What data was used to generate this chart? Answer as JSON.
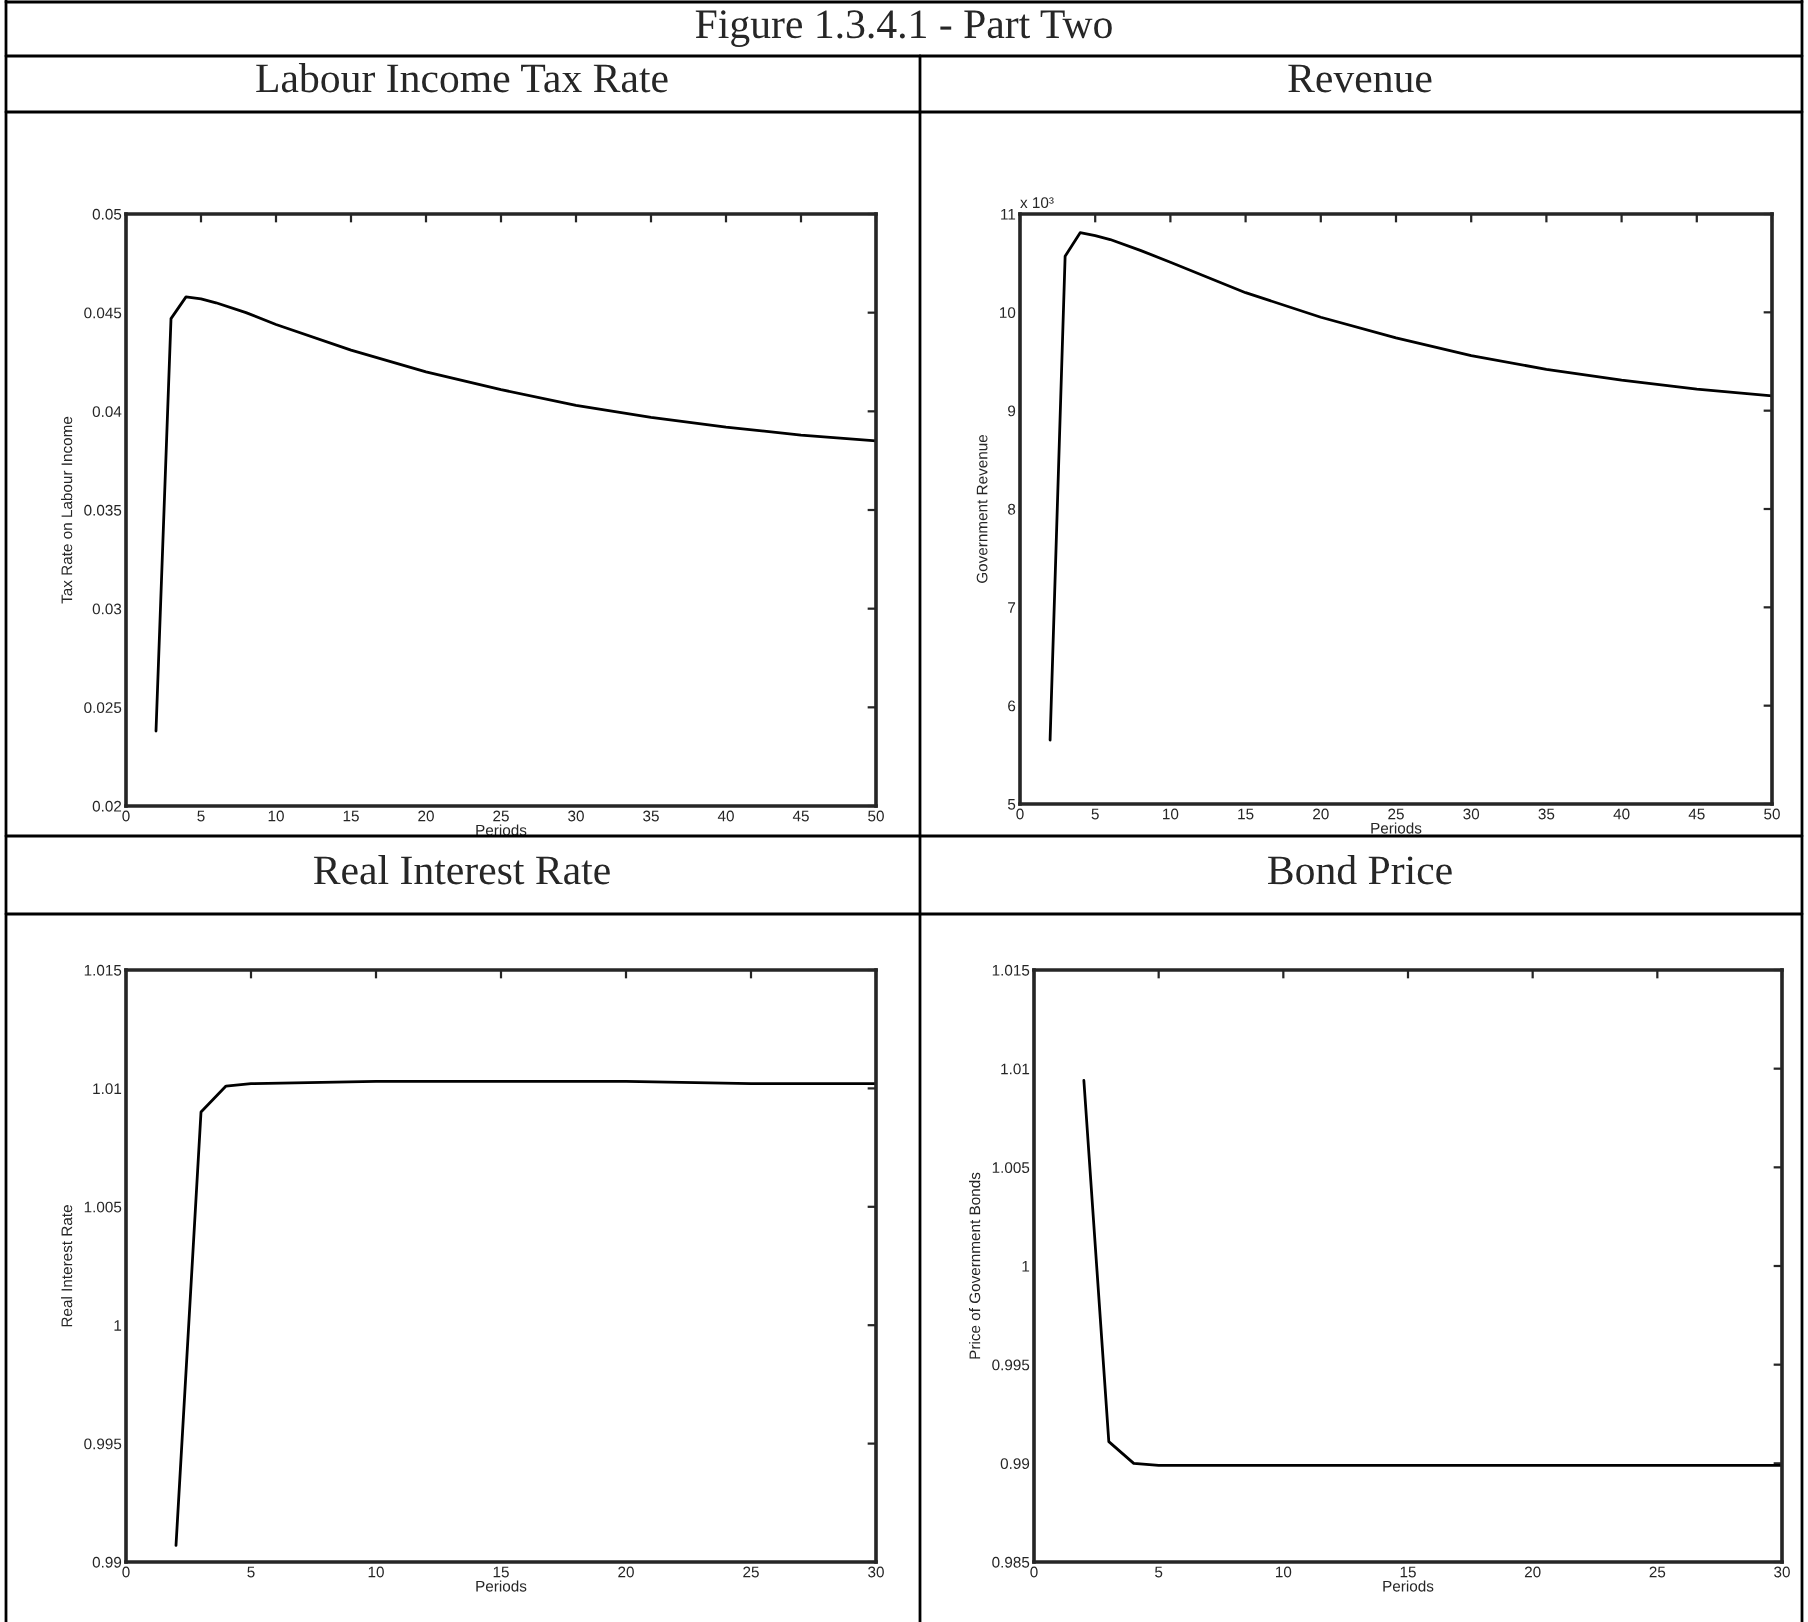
{
  "chart_data": [
    {
      "type": "line",
      "title": "Labour Income Tax Rate",
      "xlabel": "Periods",
      "ylabel": "Tax Rate on Labour Income",
      "annotations": [
        "Figure 1.3.4.1 - Part Two"
      ],
      "x": [
        2,
        3,
        4,
        5,
        6,
        8,
        10,
        15,
        20,
        25,
        30,
        35,
        40,
        45,
        50
      ],
      "series": [
        {
          "color": "#000000",
          "values": [
            0.0238,
            0.0447,
            0.0458,
            0.0457,
            0.0455,
            0.045,
            0.0444,
            0.0431,
            0.042,
            0.0411,
            0.0403,
            0.0397,
            0.0392,
            0.0388,
            0.0385
          ]
        }
      ],
      "xlim": [
        0,
        50
      ],
      "xticks": [
        0,
        5,
        10,
        15,
        20,
        25,
        30,
        35,
        40,
        45,
        50
      ],
      "ylim": [
        0.02,
        0.05
      ],
      "yticks": [
        0.02,
        0.025,
        0.03,
        0.035,
        0.04,
        0.045,
        0.05
      ]
    },
    {
      "type": "line",
      "title": "Revenue",
      "xlabel": "Periods",
      "ylabel": "Government Revenue",
      "annotations": [
        "x 10³"
      ],
      "x": [
        2,
        3,
        4,
        5,
        6,
        8,
        10,
        15,
        20,
        25,
        30,
        35,
        40,
        45,
        50
      ],
      "series": [
        {
          "color": "#000000",
          "values": [
            5.65,
            10.57,
            10.81,
            10.78,
            10.74,
            10.63,
            10.51,
            10.2,
            9.95,
            9.74,
            9.56,
            9.42,
            9.31,
            9.22,
            9.15
          ]
        }
      ],
      "xlim": [
        0,
        50
      ],
      "xticks": [
        0,
        5,
        10,
        15,
        20,
        25,
        30,
        35,
        40,
        45,
        50
      ],
      "ylim": [
        5,
        11
      ],
      "yticks": [
        5,
        6,
        7,
        8,
        9,
        10,
        11
      ]
    },
    {
      "type": "line",
      "title": "Real Interest Rate",
      "xlabel": "Periods",
      "ylabel": "Real Interest Rate",
      "x": [
        2,
        3,
        4,
        5,
        10,
        15,
        20,
        25,
        30
      ],
      "series": [
        {
          "color": "#000000",
          "values": [
            0.9907,
            1.009,
            1.0101,
            1.0102,
            1.0103,
            1.0103,
            1.0103,
            1.0102,
            1.0102
          ]
        }
      ],
      "xlim": [
        0,
        30
      ],
      "xticks": [
        0,
        5,
        10,
        15,
        20,
        25,
        30
      ],
      "ylim": [
        0.99,
        1.015
      ],
      "yticks": [
        0.99,
        0.995,
        1,
        1.005,
        1.01,
        1.015
      ]
    },
    {
      "type": "line",
      "title": "Bond Price",
      "xlabel": "Periods",
      "ylabel": "Price of Government Bonds",
      "x": [
        2,
        3,
        4,
        5,
        10,
        20,
        30
      ],
      "series": [
        {
          "color": "#000000",
          "values": [
            1.0094,
            0.9911,
            0.99,
            0.9899,
            0.9899,
            0.9899,
            0.9899
          ]
        }
      ],
      "xlim": [
        0,
        30
      ],
      "xticks": [
        0,
        5,
        10,
        15,
        20,
        25,
        30
      ],
      "ylim": [
        0.985,
        1.015
      ],
      "yticks": [
        0.985,
        0.99,
        0.995,
        1,
        1.005,
        1.01,
        1.015
      ]
    }
  ]
}
